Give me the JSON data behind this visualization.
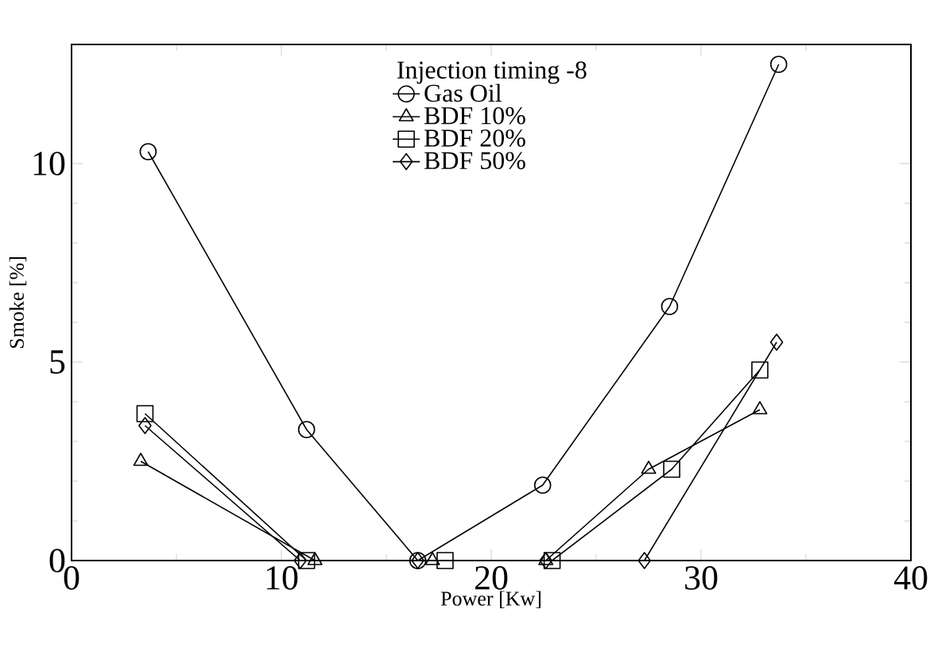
{
  "chart_data": {
    "type": "line",
    "xlabel": "Power [Kw]",
    "ylabel": "Smoke [%]",
    "legend_title": "Injection timing -8",
    "legend": "top",
    "xlim": [
      0,
      40
    ],
    "xticks": [
      0,
      10,
      20,
      30,
      40
    ],
    "ylim": [
      0,
      13
    ],
    "yticks": [
      0,
      5,
      10
    ],
    "grid": false,
    "series": [
      {
        "name": "Gas Oil",
        "color": "#000000",
        "marker": "circle",
        "x": [
          3.65,
          11.2,
          16.5,
          22.45,
          28.5,
          33.7
        ],
        "values": [
          10.3,
          3.3,
          0,
          1.9,
          6.4,
          12.5
        ]
      },
      {
        "name": "BDF 10%",
        "color": "#000000",
        "marker": "triangle",
        "x": [
          3.3,
          11.6,
          17.2,
          22.6,
          27.5,
          32.8
        ],
        "values": [
          2.5,
          0,
          0,
          0,
          2.3,
          3.8
        ]
      },
      {
        "name": "BDF 20%",
        "color": "#000000",
        "marker": "square",
        "x": [
          3.5,
          11.2,
          17.8,
          22.9,
          28.6,
          32.8
        ],
        "values": [
          3.7,
          0,
          0,
          0,
          2.3,
          4.8
        ]
      },
      {
        "name": "BDF 50%",
        "color": "#000000",
        "marker": "diamond",
        "x": [
          3.5,
          10.9,
          16.5,
          22.6,
          27.3,
          33.6
        ],
        "values": [
          3.4,
          0,
          0,
          0,
          0,
          5.5
        ]
      }
    ]
  }
}
